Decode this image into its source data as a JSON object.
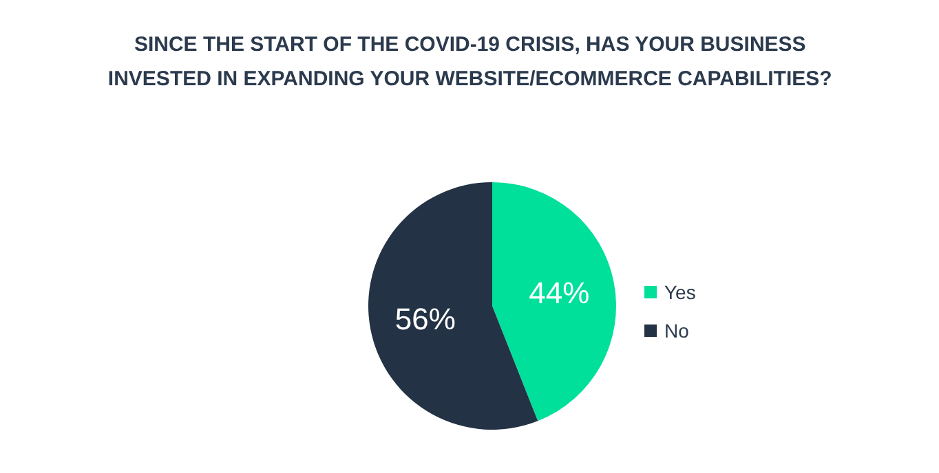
{
  "chart_data": {
    "type": "pie",
    "title": "SINCE THE START OF THE COVID-19 CRISIS, HAS YOUR BUSINESS INVESTED IN EXPANDING YOUR WEBSITE/ECOMMERCE CAPABILITIES?",
    "categories": [
      "Yes",
      "No"
    ],
    "values": [
      44,
      56
    ],
    "colors": [
      "#00e09b",
      "#233245"
    ],
    "value_labels": [
      "44%",
      "56%"
    ],
    "legend": "right"
  }
}
